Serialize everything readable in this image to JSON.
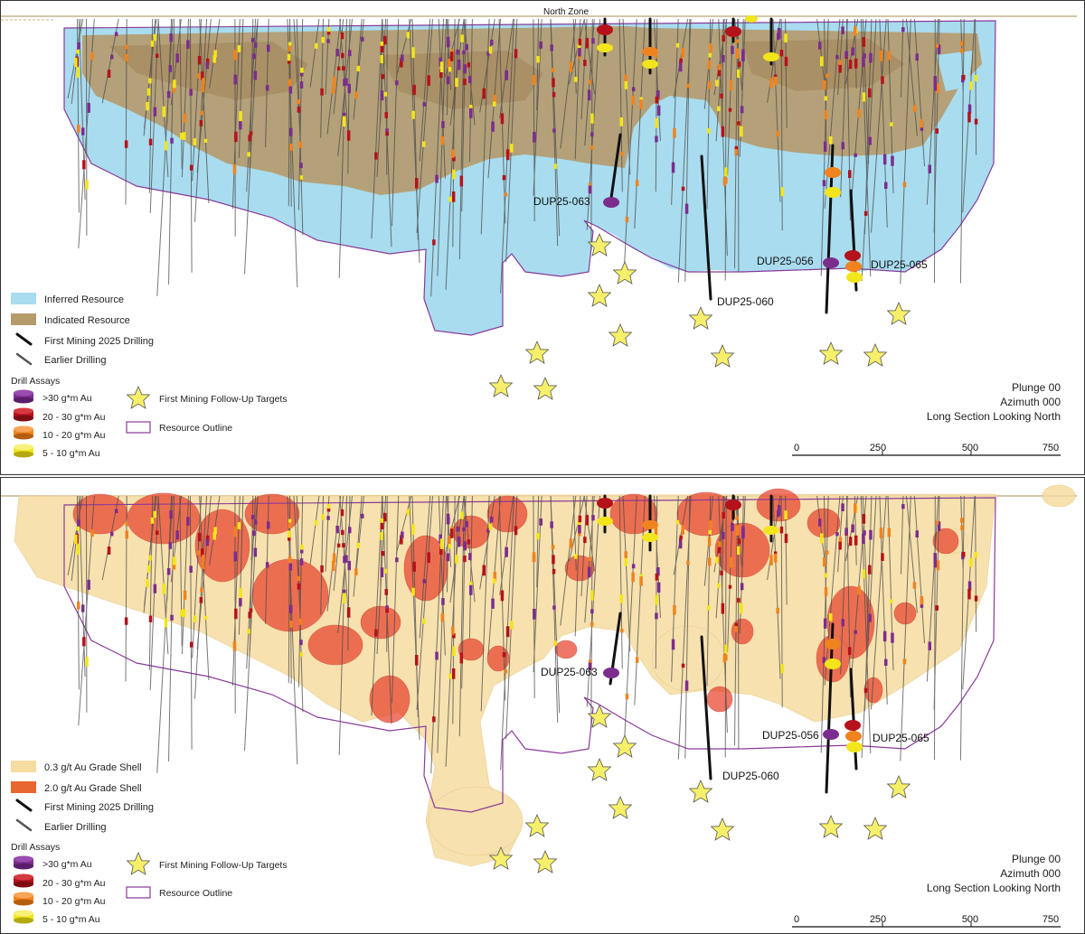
{
  "top_panel": {
    "zone_label": "North Zone",
    "hole_labels": {
      "dup063": "DUP25-063",
      "dup060": "DUP25-060",
      "dup056": "DUP25-056",
      "dup065": "DUP25-065"
    },
    "legend": {
      "inferred": "Inferred Resource",
      "indicated": "Indicated Resource",
      "first_mining": "First Mining 2025 Drilling",
      "earlier": "Earlier Drilling",
      "assays_title": "Drill Assays",
      "a30": ">30 g*m Au",
      "a20": "20 - 30 g*m Au",
      "a10": "10 - 20 g*m Au",
      "a5": "5 - 10 g*m Au",
      "targets": "First Mining Follow-Up Targets",
      "outline": "Resource Outline"
    },
    "view": {
      "plunge": "Plunge 00",
      "azimuth": "Azimuth 000",
      "section": "Long Section Looking North"
    },
    "scale": {
      "t0": "0",
      "t1": "250",
      "t2": "500",
      "t3": "750"
    }
  },
  "bottom_panel": {
    "hole_labels": {
      "dup063": "DUP25-063",
      "dup060": "DUP25-060",
      "dup056": "DUP25-056",
      "dup065": "DUP25-065"
    },
    "legend": {
      "shell03": "0.3 g/t Au Grade Shell",
      "shell20": "2.0 g/t Au Grade Shell",
      "first_mining": "First Mining 2025 Drilling",
      "earlier": "Earlier Drilling",
      "assays_title": "Drill Assays",
      "a30": ">30 g*m Au",
      "a20": "20 - 30 g*m Au",
      "a10": "10 - 20 g*m Au",
      "a5": "5 - 10 g*m Au",
      "targets": "First Mining Follow-Up Targets",
      "outline": "Resource Outline"
    },
    "view": {
      "plunge": "Plunge 00",
      "azimuth": "Azimuth 000",
      "section": "Long Section Looking North"
    },
    "scale": {
      "t0": "0",
      "t1": "250",
      "t2": "500",
      "t3": "750"
    }
  },
  "colors": {
    "inferred": "#a9dcef",
    "indicated": "#b59a6c",
    "outline": "#8a3a9a",
    "shell03": "#f6dca0",
    "shell20": "#e8432e",
    "star": "#f6ef6a",
    "assay30": "#7b2d8e",
    "assay20": "#b5121b",
    "assay10": "#f0831e",
    "assay5": "#f2e51b"
  }
}
